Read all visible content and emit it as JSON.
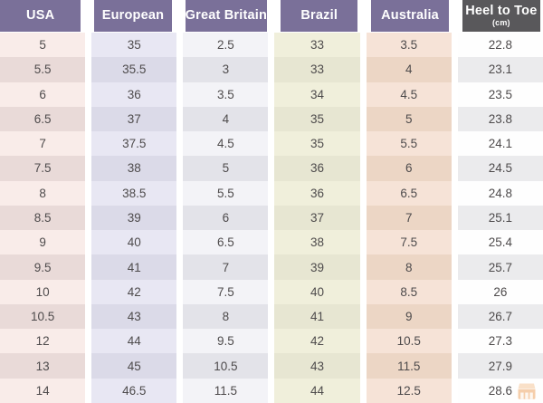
{
  "chart_data": {
    "type": "table",
    "columns": [
      {
        "key": "usa",
        "label": "USA",
        "header_bg": "#7a7099",
        "header_color": "#ffffff",
        "odd_bg": "#f9ece9",
        "even_bg": "#e9dad8"
      },
      {
        "key": "european",
        "label": "European",
        "header_bg": "#7a7099",
        "header_color": "#ffffff",
        "odd_bg": "#e8e7f3",
        "even_bg": "#dbdae8"
      },
      {
        "key": "great_britain",
        "label": "Great Britain",
        "header_bg": "#7a7099",
        "header_color": "#ffffff",
        "odd_bg": "#f3f3f7",
        "even_bg": "#e3e3e9"
      },
      {
        "key": "brazil",
        "label": "Brazil",
        "header_bg": "#7a7099",
        "header_color": "#ffffff",
        "odd_bg": "#f0efdb",
        "even_bg": "#e7e6d2"
      },
      {
        "key": "australia",
        "label": "Australia",
        "header_bg": "#7a7099",
        "header_color": "#ffffff",
        "odd_bg": "#f6e3d7",
        "even_bg": "#ecd6c5"
      },
      {
        "key": "heel_to_toe",
        "label": "Heel to Toe",
        "sublabel": "(cm)",
        "header_bg": "#59585b",
        "header_color": "#ffffff",
        "odd_bg": "#fefefe",
        "even_bg": "#ebebed"
      }
    ],
    "rows": [
      [
        "5",
        "35",
        "2.5",
        "33",
        "3.5",
        "22.8"
      ],
      [
        "5.5",
        "35.5",
        "3",
        "33",
        "4",
        "23.1"
      ],
      [
        "6",
        "36",
        "3.5",
        "34",
        "4.5",
        "23.5"
      ],
      [
        "6.5",
        "37",
        "4",
        "35",
        "5",
        "23.8"
      ],
      [
        "7",
        "37.5",
        "4.5",
        "35",
        "5.5",
        "24.1"
      ],
      [
        "7.5",
        "38",
        "5",
        "36",
        "6",
        "24.5"
      ],
      [
        "8",
        "38.5",
        "5.5",
        "36",
        "6.5",
        "24.8"
      ],
      [
        "8.5",
        "39",
        "6",
        "37",
        "7",
        "25.1"
      ],
      [
        "9",
        "40",
        "6.5",
        "38",
        "7.5",
        "25.4"
      ],
      [
        "9.5",
        "41",
        "7",
        "39",
        "8",
        "25.7"
      ],
      [
        "10",
        "42",
        "7.5",
        "40",
        "8.5",
        "26"
      ],
      [
        "10.5",
        "43",
        "8",
        "41",
        "9",
        "26.7"
      ],
      [
        "12",
        "44",
        "9.5",
        "42",
        "10.5",
        "27.3"
      ],
      [
        "13",
        "45",
        "10.5",
        "43",
        "11.5",
        "27.9"
      ],
      [
        "14",
        "46.5",
        "11.5",
        "44",
        "12.5",
        "28.6"
      ]
    ],
    "layout": {
      "grid": false,
      "legend": "none",
      "header_position": "top"
    }
  },
  "colors": {
    "header_purple": "#7a7099",
    "header_dark": "#59585b",
    "body_text": "#4e4b4c",
    "gap": "#ffffff",
    "watermark_body": "#efa868",
    "watermark_roof": "#f6c99d"
  }
}
